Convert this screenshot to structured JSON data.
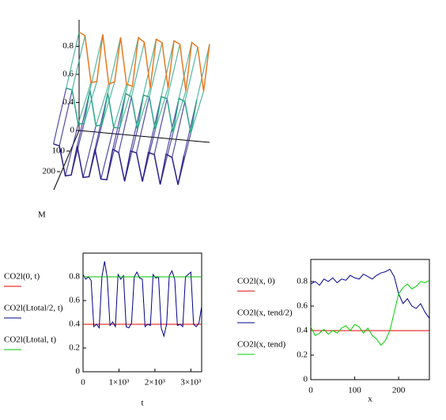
{
  "chart_data": [
    {
      "type": "surface3d",
      "label": "M",
      "x": [
        0,
        150,
        300,
        450,
        600,
        750,
        900,
        1050,
        1200,
        1350,
        1500,
        1650,
        1800,
        1950,
        2100,
        2250,
        2400,
        2550,
        2700,
        2850,
        3000,
        3150,
        3300
      ],
      "xlim": [
        0,
        3300
      ],
      "depth": [
        0,
        135,
        270
      ],
      "ylim": [
        0,
        270
      ],
      "yticks": [
        0,
        100,
        200
      ],
      "zlim": [
        0.2,
        1.0
      ],
      "zticks": [
        0.4,
        0.6,
        0.8
      ],
      "z": [
        [
          0.9,
          0.88,
          0.55,
          0.56,
          0.9,
          0.55,
          0.57,
          0.89,
          0.56,
          0.55,
          0.9,
          0.87,
          0.55,
          0.9,
          0.88,
          0.56,
          0.9,
          0.88,
          0.55,
          0.9,
          0.87,
          0.56,
          0.9
        ],
        [
          0.7,
          0.69,
          0.45,
          0.46,
          0.7,
          0.45,
          0.46,
          0.69,
          0.45,
          0.45,
          0.7,
          0.68,
          0.45,
          0.7,
          0.69,
          0.46,
          0.7,
          0.69,
          0.45,
          0.7,
          0.68,
          0.46,
          0.7
        ],
        [
          0.5,
          0.49,
          0.28,
          0.29,
          0.5,
          0.28,
          0.29,
          0.49,
          0.28,
          0.28,
          0.5,
          0.48,
          0.28,
          0.5,
          0.49,
          0.29,
          0.5,
          0.49,
          0.28,
          0.5,
          0.48,
          0.29,
          0.5
        ]
      ],
      "colors": [
        "#e8781e",
        "#2aa58a",
        "#2a1f8c"
      ]
    },
    {
      "type": "line",
      "xlabel": "t",
      "xlim": [
        0,
        3300
      ],
      "xticks": [
        0,
        {
          "value": 1000,
          "label": "1×10³"
        },
        {
          "value": 2000,
          "label": "2×10³"
        },
        {
          "value": 3000,
          "label": "3×10³"
        }
      ],
      "ylim": [
        0,
        1.0
      ],
      "yticks": [
        0,
        0.2,
        0.4,
        0.6,
        0.8
      ],
      "series": [
        {
          "name": "CO2l(0, t)",
          "color": "#e00000",
          "x": [
            0,
            3300
          ],
          "values": [
            0.4,
            0.4
          ]
        },
        {
          "name": "CO2l(Ltotal/2, t)",
          "color": "#00008b",
          "x": [
            0,
            75,
            150,
            225,
            300,
            375,
            450,
            525,
            600,
            675,
            750,
            825,
            900,
            975,
            1050,
            1125,
            1200,
            1275,
            1350,
            1425,
            1500,
            1575,
            1650,
            1725,
            1800,
            1875,
            1950,
            2025,
            2100,
            2175,
            2250,
            2325,
            2400,
            2475,
            2550,
            2625,
            2700,
            2775,
            2850,
            2925,
            3000,
            3075,
            3150,
            3225,
            3300
          ],
          "values": [
            0.82,
            0.78,
            0.8,
            0.77,
            0.38,
            0.4,
            0.37,
            0.8,
            0.93,
            0.79,
            0.39,
            0.42,
            0.38,
            0.82,
            0.78,
            0.81,
            0.38,
            0.37,
            0.41,
            0.8,
            0.84,
            0.79,
            0.78,
            0.38,
            0.4,
            0.39,
            0.82,
            0.79,
            0.8,
            0.37,
            0.3,
            0.4,
            0.81,
            0.85,
            0.78,
            0.39,
            0.4,
            0.38,
            0.8,
            0.82,
            0.84,
            0.4,
            0.38,
            0.41,
            0.55
          ]
        },
        {
          "name": "CO2l(Ltotal, t)",
          "color": "#00c000",
          "x": [
            0,
            1000,
            2000,
            3000,
            3300
          ],
          "values": [
            0.8,
            0.8,
            0.8,
            0.8,
            0.8
          ]
        }
      ]
    },
    {
      "type": "line",
      "xlabel": "x",
      "xlim": [
        0,
        270
      ],
      "xticks": [
        0,
        100,
        200
      ],
      "ylim": [
        0,
        0.98
      ],
      "yticks": [
        0,
        0.2,
        0.4,
        0.6,
        0.8
      ],
      "series": [
        {
          "name": "CO2l(x, 0)",
          "color": "#e00000",
          "x": [
            0,
            270
          ],
          "values": [
            0.4,
            0.4
          ]
        },
        {
          "name": "CO2l(x, tend/2)",
          "color": "#00008b",
          "x": [
            0,
            10,
            20,
            30,
            40,
            50,
            60,
            70,
            80,
            90,
            100,
            110,
            120,
            130,
            140,
            150,
            160,
            170,
            180,
            190,
            200,
            210,
            220,
            230,
            240,
            250,
            260,
            270
          ],
          "values": [
            0.78,
            0.8,
            0.77,
            0.82,
            0.8,
            0.83,
            0.79,
            0.82,
            0.81,
            0.85,
            0.83,
            0.82,
            0.86,
            0.84,
            0.82,
            0.85,
            0.87,
            0.88,
            0.9,
            0.84,
            0.7,
            0.62,
            0.66,
            0.6,
            0.58,
            0.62,
            0.55,
            0.5
          ]
        },
        {
          "name": "CO2l(x, tend)",
          "color": "#00d000",
          "x": [
            0,
            10,
            20,
            30,
            40,
            50,
            60,
            70,
            80,
            90,
            100,
            110,
            120,
            130,
            140,
            150,
            160,
            170,
            180,
            190,
            200,
            210,
            220,
            230,
            240,
            250,
            260,
            270
          ],
          "values": [
            0.43,
            0.36,
            0.38,
            0.41,
            0.37,
            0.4,
            0.38,
            0.42,
            0.44,
            0.4,
            0.45,
            0.43,
            0.38,
            0.42,
            0.36,
            0.33,
            0.28,
            0.32,
            0.4,
            0.55,
            0.7,
            0.75,
            0.78,
            0.74,
            0.76,
            0.8,
            0.79,
            0.81
          ]
        }
      ]
    }
  ]
}
